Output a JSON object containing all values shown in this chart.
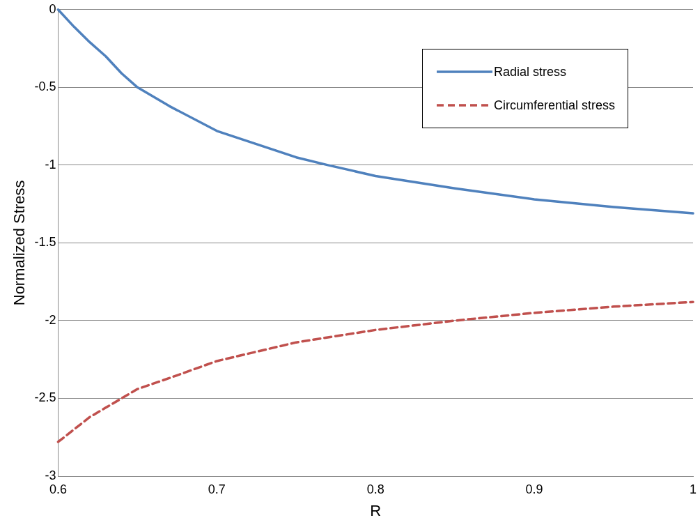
{
  "chart_data": {
    "type": "line",
    "xlabel": "R",
    "ylabel": "Normalized Stress",
    "xlim": [
      0.6,
      1
    ],
    "xticks": [
      0.6,
      0.7,
      0.8,
      0.9,
      1
    ],
    "ylim": [
      -3,
      0
    ],
    "yticks": [
      0,
      -0.5,
      -1,
      -1.5,
      -2,
      -2.5,
      -3
    ],
    "grid": "y",
    "legend": "top right",
    "marker": "none",
    "series": [
      {
        "name": "Radial stress",
        "color": "#4f81bd",
        "line_style": "solid",
        "x": [
          0.6,
          0.61,
          0.62,
          0.63,
          0.64,
          0.65,
          0.67,
          0.7,
          0.75,
          0.77,
          0.8,
          0.85,
          0.9,
          0.95,
          1
        ],
        "values": [
          0,
          -0.11,
          -0.21,
          -0.3,
          -0.41,
          -0.5,
          -0.62,
          -0.78,
          -0.95,
          -1.0,
          -1.07,
          -1.15,
          -1.22,
          -1.27,
          -1.31
        ]
      },
      {
        "name": "Circumferential stress",
        "color": "#c0504d",
        "line_style": "dashed",
        "x": [
          0.6,
          0.61,
          0.62,
          0.63,
          0.64,
          0.65,
          0.67,
          0.7,
          0.75,
          0.8,
          0.85,
          0.9,
          0.95,
          1
        ],
        "values": [
          -2.78,
          -2.7,
          -2.62,
          -2.56,
          -2.5,
          -2.44,
          -2.37,
          -2.26,
          -2.14,
          -2.06,
          -2.0,
          -1.95,
          -1.91,
          -1.88
        ]
      }
    ]
  }
}
